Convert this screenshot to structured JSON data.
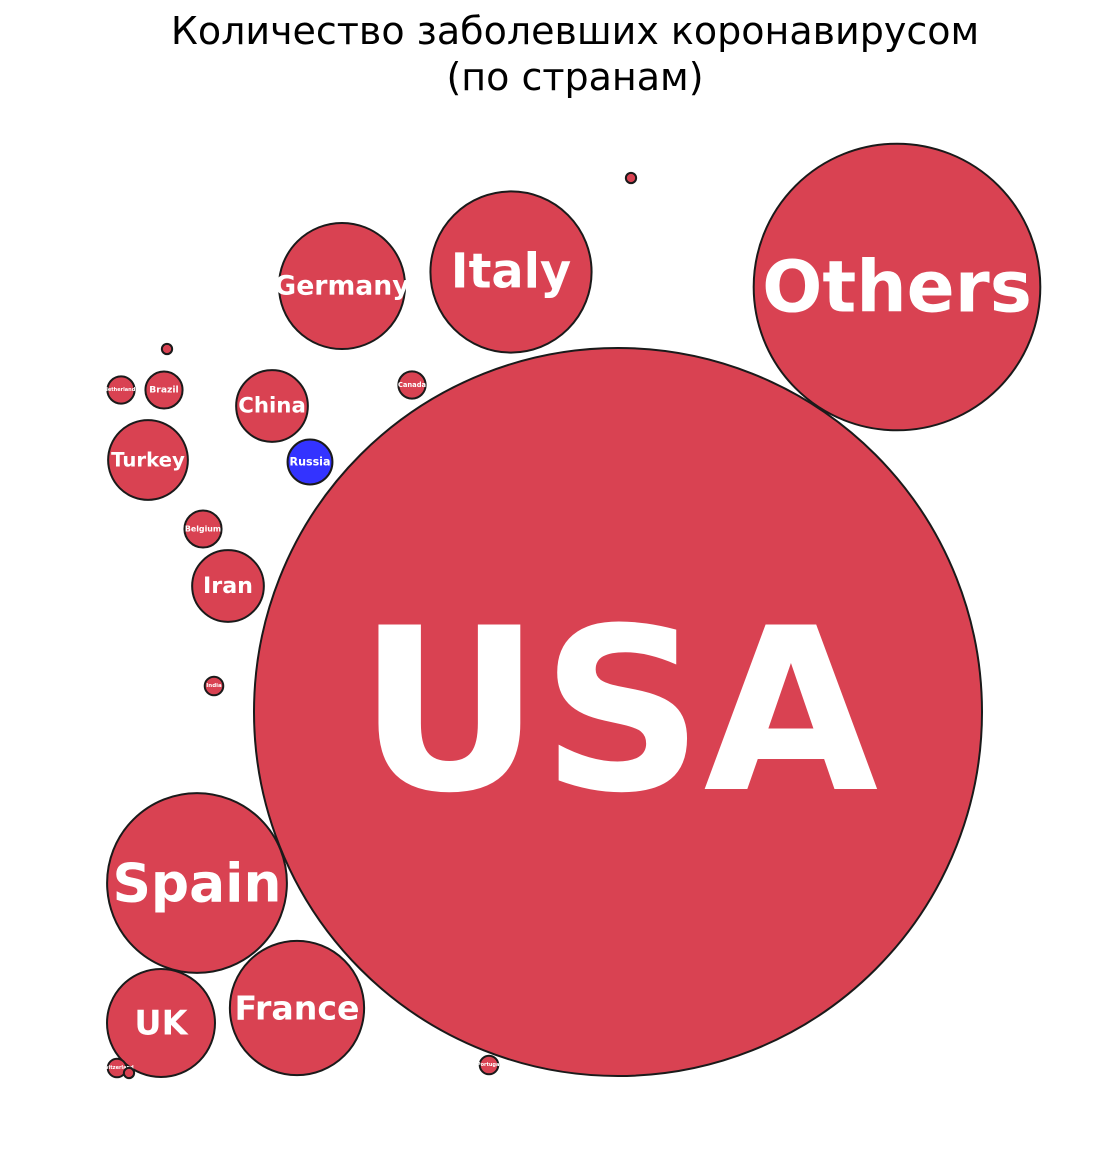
{
  "chart_data": {
    "type": "bubble",
    "title": "Количество заболевших коронавирусом",
    "subtitle": "(по странам)",
    "colors": {
      "default": "#d94252",
      "highlight": "#3333ff"
    },
    "bubbles": [
      {
        "label": "USA",
        "value": 1000
      },
      {
        "label": "Others",
        "value": 155
      },
      {
        "label": "Italy",
        "value": 49
      },
      {
        "label": "Spain",
        "value": 61
      },
      {
        "label": "France",
        "value": 34
      },
      {
        "label": "Germany",
        "value": 30
      },
      {
        "label": "UK",
        "value": 22
      },
      {
        "label": "Turkey",
        "value": 12
      },
      {
        "label": "China",
        "value": 9.7
      },
      {
        "label": "Iran",
        "value": 9.7
      },
      {
        "label": "Russia",
        "value": 3.8,
        "highlight": true
      },
      {
        "label": "Belgium",
        "value": 2.6
      },
      {
        "label": "Brazil",
        "value": 2.6
      },
      {
        "label": "Netherlands",
        "value": 1.4
      },
      {
        "label": "Canada",
        "value": 1.4
      },
      {
        "label": "India",
        "value": 0.65
      },
      {
        "label": "Portugal",
        "value": 0.65
      },
      {
        "label": "Switzerland",
        "value": 0.65
      },
      {
        "label": "",
        "value": 0.2
      },
      {
        "label": "",
        "value": 0.2
      },
      {
        "label": "",
        "value": 0.2
      }
    ]
  }
}
